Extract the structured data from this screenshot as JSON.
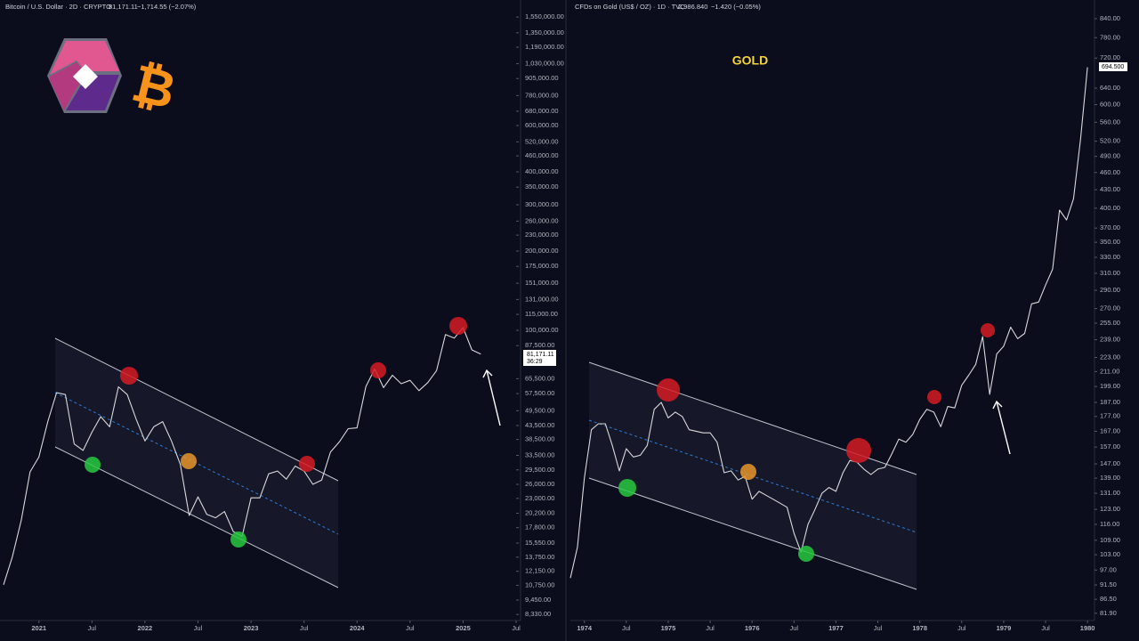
{
  "chart_data": [
    {
      "type": "line",
      "title": "Bitcoin / U.S. Dollar · 2D · CRYPTO",
      "price": "81,171.11",
      "change": "−1,714.55 (−2.07%)",
      "logo_text": "₿",
      "last_label": "81,171.11",
      "countdown": "36:29",
      "log_scale": true,
      "grid": false,
      "x": [
        "2020-09",
        "2020-10",
        "2020-11",
        "2020-12",
        "2021-01",
        "2021-02",
        "2021-03",
        "2021-04",
        "2021-05",
        "2021-06",
        "2021-07",
        "2021-08",
        "2021-09",
        "2021-10",
        "2021-11",
        "2021-12",
        "2022-01",
        "2022-02",
        "2022-03",
        "2022-04",
        "2022-05",
        "2022-06",
        "2022-07",
        "2022-08",
        "2022-09",
        "2022-10",
        "2022-11",
        "2022-12",
        "2023-01",
        "2023-02",
        "2023-03",
        "2023-04",
        "2023-05",
        "2023-06",
        "2023-07",
        "2023-08",
        "2023-09",
        "2023-10",
        "2023-11",
        "2023-12",
        "2024-01",
        "2024-02",
        "2024-03",
        "2024-04",
        "2024-05",
        "2024-06",
        "2024-07",
        "2024-08",
        "2024-09",
        "2024-10",
        "2024-11",
        "2024-12",
        "2025-01",
        "2025-02",
        "2025-03"
      ],
      "series": [
        {
          "name": "BTCUSD",
          "color": "#d9d9dc",
          "values": [
            10800,
            13800,
            19000,
            29000,
            33000,
            45000,
            58000,
            57000,
            37000,
            35000,
            41000,
            47000,
            43000,
            61000,
            57000,
            46000,
            38000,
            43000,
            45000,
            38000,
            31000,
            19800,
            23300,
            20000,
            19400,
            20500,
            17200,
            16500,
            23100,
            23100,
            28500,
            29200,
            27200,
            30500,
            29200,
            26000,
            27000,
            34500,
            37700,
            42300,
            42600,
            61200,
            71300,
            60600,
            67500,
            62700,
            64600,
            59000,
            63300,
            70300,
            96400,
            93400,
            102400,
            84300,
            81171.11
          ]
        }
      ],
      "xlim": [
        "2020-09",
        "2025-07"
      ],
      "xticks": [
        {
          "value": "2021-01",
          "label": "2021"
        },
        {
          "value": "2021-07",
          "label": "Jul"
        },
        {
          "value": "2022-01",
          "label": "2022"
        },
        {
          "value": "2022-07",
          "label": "Jul"
        },
        {
          "value": "2023-01",
          "label": "2023"
        },
        {
          "value": "2023-07",
          "label": "Jul"
        },
        {
          "value": "2024-01",
          "label": "2024"
        },
        {
          "value": "2024-07",
          "label": "Jul"
        },
        {
          "value": "2025-01",
          "label": "2025"
        },
        {
          "value": "2025-07",
          "label": "Jul"
        }
      ],
      "ylim": [
        7900,
        1690000
      ],
      "yticks": [
        {
          "value": 1550000,
          "label": "1,550,000.00"
        },
        {
          "value": 1350000,
          "label": "1,350,000.00"
        },
        {
          "value": 1190000,
          "label": "1,190,000.00"
        },
        {
          "value": 1030000,
          "label": "1,030,000.00"
        },
        {
          "value": 905000,
          "label": "905,000.00"
        },
        {
          "value": 780000,
          "label": "780,000.00"
        },
        {
          "value": 680000,
          "label": "680,000.00"
        },
        {
          "value": 600000,
          "label": "600,000.00"
        },
        {
          "value": 520000,
          "label": "520,000.00"
        },
        {
          "value": 460000,
          "label": "460,000.00"
        },
        {
          "value": 400000,
          "label": "400,000.00"
        },
        {
          "value": 350000,
          "label": "350,000.00"
        },
        {
          "value": 300000,
          "label": "300,000.00"
        },
        {
          "value": 260000,
          "label": "260,000.00"
        },
        {
          "value": 230000,
          "label": "230,000.00"
        },
        {
          "value": 200000,
          "label": "200,000.00"
        },
        {
          "value": 175000,
          "label": "175,000.00"
        },
        {
          "value": 151000,
          "label": "151,000.00"
        },
        {
          "value": 131000,
          "label": "131,000.00"
        },
        {
          "value": 115000,
          "label": "115,000.00"
        },
        {
          "value": 100000,
          "label": "100,000.00"
        },
        {
          "value": 87500,
          "label": "87,500.00"
        },
        {
          "value": 65500,
          "label": "65,500.00"
        },
        {
          "value": 57500,
          "label": "57,500.00"
        },
        {
          "value": 49500,
          "label": "49,500.00"
        },
        {
          "value": 43500,
          "label": "43,500.00"
        },
        {
          "value": 38500,
          "label": "38,500.00"
        },
        {
          "value": 33500,
          "label": "33,500.00"
        },
        {
          "value": 29500,
          "label": "29,500.00"
        },
        {
          "value": 26000,
          "label": "26,000.00"
        },
        {
          "value": 23000,
          "label": "23,000.00"
        },
        {
          "value": 20200,
          "label": "20,200.00"
        },
        {
          "value": 17800,
          "label": "17,800.00"
        },
        {
          "value": 15550,
          "label": "15,550.00"
        },
        {
          "value": 13750,
          "label": "13,750.00"
        },
        {
          "value": 12150,
          "label": "12,150.00"
        },
        {
          "value": 10750,
          "label": "10,750.00"
        },
        {
          "value": 9450,
          "label": "9,450.00"
        },
        {
          "value": 8330,
          "label": "8,330.00"
        }
      ]
    },
    {
      "type": "line",
      "title": "CFDs on Gold (US$ / OZ) · 1D · TVC",
      "price": "2,986.840",
      "change": "−1.420 (−0.05%)",
      "annotation": "GOLD",
      "last_label": "694.500",
      "log_scale": true,
      "grid": false,
      "x": [
        "1973-11",
        "1973-12",
        "1974-01",
        "1974-02",
        "1974-03",
        "1974-04",
        "1974-05",
        "1974-06",
        "1974-07",
        "1974-08",
        "1974-09",
        "1974-10",
        "1974-11",
        "1974-12",
        "1975-01",
        "1975-02",
        "1975-03",
        "1975-04",
        "1975-05",
        "1975-06",
        "1975-07",
        "1975-08",
        "1975-09",
        "1975-10",
        "1975-11",
        "1975-12",
        "1976-01",
        "1976-02",
        "1976-03",
        "1976-04",
        "1976-05",
        "1976-06",
        "1976-07",
        "1976-08",
        "1976-09",
        "1976-10",
        "1976-11",
        "1976-12",
        "1977-01",
        "1977-02",
        "1977-03",
        "1977-04",
        "1977-05",
        "1977-06",
        "1977-07",
        "1977-08",
        "1977-09",
        "1977-10",
        "1977-11",
        "1977-12",
        "1978-01",
        "1978-02",
        "1978-03",
        "1978-04",
        "1978-05",
        "1978-06",
        "1978-07",
        "1978-08",
        "1978-09",
        "1978-10",
        "1978-11",
        "1978-12",
        "1979-01",
        "1979-02",
        "1979-03",
        "1979-04",
        "1979-05",
        "1979-06",
        "1979-07",
        "1979-08",
        "1979-09",
        "1979-10",
        "1979-11",
        "1979-12",
        "1980-01"
      ],
      "series": [
        {
          "name": "XAUUSD",
          "color": "#d9d9dc",
          "values": [
            94,
            106,
            139,
            168,
            172,
            172,
            158,
            143,
            156,
            151,
            152,
            158,
            182,
            187,
            176,
            180,
            177,
            168,
            167,
            166,
            166,
            160,
            142,
            143,
            138,
            140,
            128,
            132,
            130,
            128,
            126,
            124,
            112,
            104,
            116,
            123,
            131,
            134,
            132,
            142,
            149,
            148,
            144,
            141,
            144,
            145,
            153,
            162,
            160,
            165,
            175,
            182,
            180,
            170,
            184,
            183,
            200,
            208,
            217,
            242,
            193,
            226,
            233,
            251,
            240,
            245,
            275,
            277,
            296,
            315,
            397,
            382,
            415,
            524,
            694.5
          ]
        }
      ],
      "xlim": [
        "1973-11",
        "1980-02"
      ],
      "xticks": [
        {
          "value": "1974-01",
          "label": "1974"
        },
        {
          "value": "1974-07",
          "label": "Jul"
        },
        {
          "value": "1975-01",
          "label": "1975"
        },
        {
          "value": "1975-07",
          "label": "Jul"
        },
        {
          "value": "1976-01",
          "label": "1976"
        },
        {
          "value": "1976-07",
          "label": "Jul"
        },
        {
          "value": "1977-01",
          "label": "1977"
        },
        {
          "value": "1977-07",
          "label": "Jul"
        },
        {
          "value": "1978-01",
          "label": "1978"
        },
        {
          "value": "1978-07",
          "label": "Jul"
        },
        {
          "value": "1979-01",
          "label": "1979"
        },
        {
          "value": "1979-07",
          "label": "Jul"
        },
        {
          "value": "1980-01",
          "label": "1980"
        }
      ],
      "ylim": [
        79.6,
        879
      ],
      "yticks": [
        {
          "value": 840,
          "label": "840.00"
        },
        {
          "value": 780,
          "label": "780.00"
        },
        {
          "value": 720,
          "label": "720.00"
        },
        {
          "value": 640,
          "label": "640.00"
        },
        {
          "value": 600,
          "label": "600.00"
        },
        {
          "value": 560,
          "label": "560.00"
        },
        {
          "value": 520,
          "label": "520.00"
        },
        {
          "value": 490,
          "label": "490.00"
        },
        {
          "value": 460,
          "label": "460.00"
        },
        {
          "value": 430,
          "label": "430.00"
        },
        {
          "value": 400,
          "label": "400.00"
        },
        {
          "value": 370,
          "label": "370.00"
        },
        {
          "value": 350,
          "label": "350.00"
        },
        {
          "value": 330,
          "label": "330.00"
        },
        {
          "value": 310,
          "label": "310.00"
        },
        {
          "value": 290,
          "label": "290.00"
        },
        {
          "value": 270,
          "label": "270.00"
        },
        {
          "value": 255,
          "label": "255.00"
        },
        {
          "value": 239,
          "label": "239.00"
        },
        {
          "value": 223,
          "label": "223.00"
        },
        {
          "value": 211,
          "label": "211.00"
        },
        {
          "value": 199,
          "label": "199.00"
        },
        {
          "value": 187,
          "label": "187.00"
        },
        {
          "value": 177,
          "label": "177.00"
        },
        {
          "value": 167,
          "label": "167.00"
        },
        {
          "value": 157,
          "label": "157.00"
        },
        {
          "value": 147,
          "label": "147.00"
        },
        {
          "value": 139,
          "label": "139.00"
        },
        {
          "value": 131,
          "label": "131.00"
        },
        {
          "value": 123,
          "label": "123.00"
        },
        {
          "value": 116,
          "label": "116.00"
        },
        {
          "value": 109,
          "label": "109.00"
        },
        {
          "value": 103,
          "label": "103.00"
        },
        {
          "value": 97,
          "label": "97.00"
        },
        {
          "value": 91.5,
          "label": "91.50"
        },
        {
          "value": 86.5,
          "label": "86.50"
        },
        {
          "value": 81.9,
          "label": "81.90"
        }
      ]
    }
  ]
}
